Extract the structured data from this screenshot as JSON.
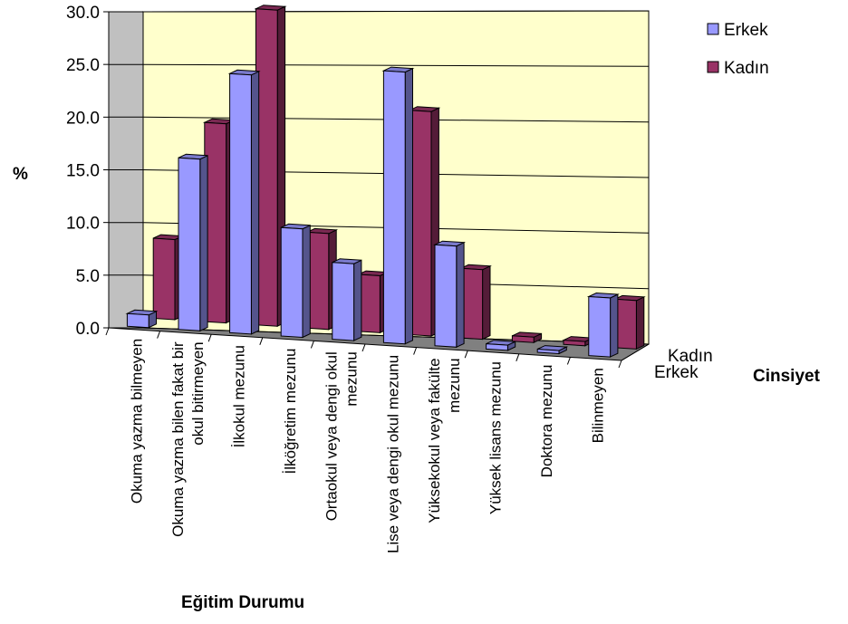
{
  "chart_data": {
    "type": "bar",
    "variant": "3d-clustered-column",
    "categories": [
      "Okuma yazma bilmeyen",
      "Okuma yazma bilen fakat bir okul bitirmeyen",
      "İlkokul mezunu",
      "İlköğretim mezunu",
      "Ortaokul veya dengi okul mezunu",
      "Lise veya dengi okul mezunu",
      "Yüksekokul veya fakülte mezunu",
      "Yüksek lisans mezunu",
      "Doktora mezunu",
      "Bilinmeyen"
    ],
    "category_lines": [
      [
        "Okuma yazma bilmeyen"
      ],
      [
        "Okuma yazma bilen fakat bir",
        "okul bitirmeyen"
      ],
      [
        "İlkokul mezunu"
      ],
      [
        "İlköğretim mezunu"
      ],
      [
        "Ortaokul veya dengi okul",
        "mezunu"
      ],
      [
        "Lise veya dengi okul mezunu"
      ],
      [
        "Yüksekokul veya fakülte",
        "mezunu"
      ],
      [
        "Yüksek lisans mezunu"
      ],
      [
        "Doktora mezunu"
      ],
      [
        "Bilinmeyen"
      ]
    ],
    "series": [
      {
        "name": "Erkek",
        "color": "#9999ff",
        "values": [
          1.2,
          16.3,
          24.6,
          10.3,
          7.3,
          25.8,
          9.6,
          0.5,
          0.3,
          5.6
        ]
      },
      {
        "name": "Kadın",
        "color": "#993366",
        "values": [
          7.6,
          18.9,
          30.0,
          9.1,
          5.4,
          21.3,
          6.6,
          0.5,
          0.4,
          4.6
        ]
      }
    ],
    "depth_labels": [
      "Kadın",
      "Erkek"
    ],
    "title": "",
    "xlabel": "Eğitim Durumu",
    "ylabel": "%",
    "zlabel": "Cinsiyet",
    "ylim": [
      0,
      30
    ],
    "yticks": [
      "0.0",
      "5.0",
      "10.0",
      "15.0",
      "20.0",
      "25.0",
      "30.0"
    ],
    "back_wall_color": "#ffffcc",
    "floor_color": "#808080",
    "grid": true,
    "legend_position": "top-right"
  }
}
